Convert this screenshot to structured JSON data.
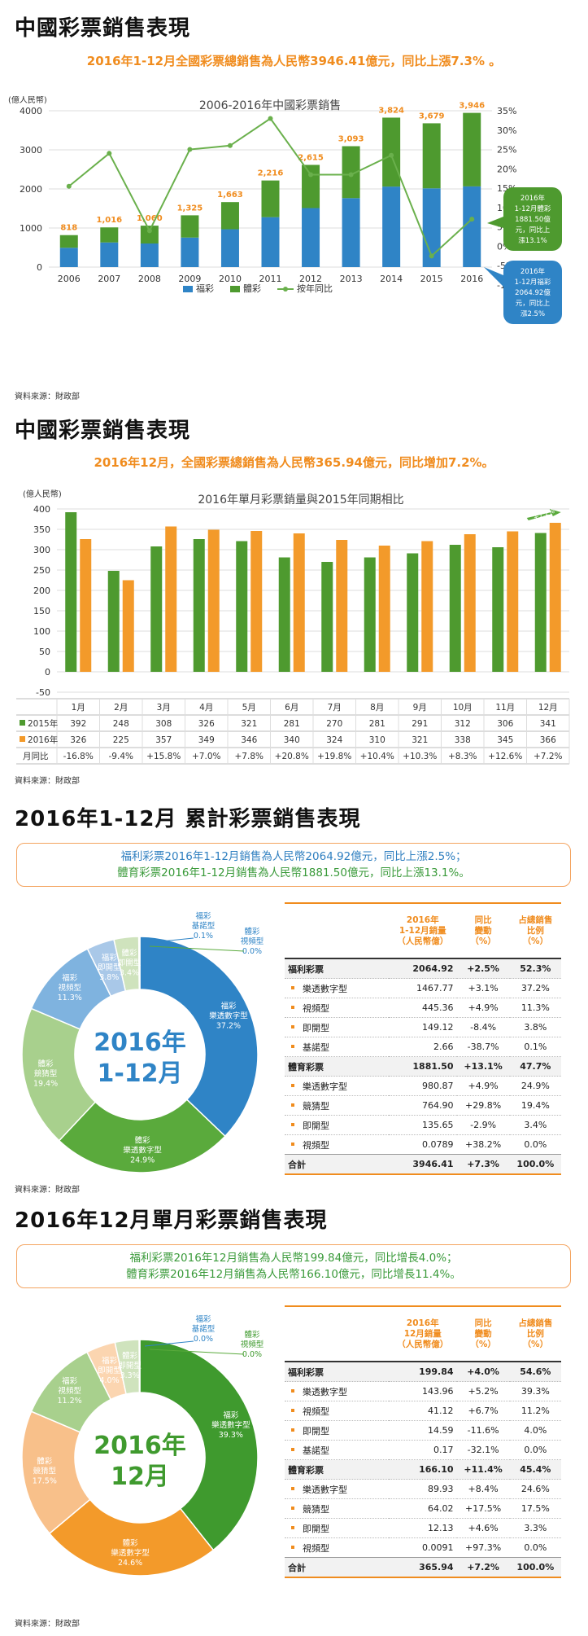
{
  "s1": {
    "title": "中國彩票銷售表現",
    "sub": "2016年1-12月全國彩票總銷售為人民幣3946.41億元，同比上漲7.3% 。",
    "unit": "(億人民幣)",
    "source": "資料來源：財政部"
  },
  "s2": {
    "title": "中國彩票銷售表現",
    "sub": "2016年12月，全國彩票總銷售為人民幣365.94億元，同比增加7.2%。",
    "unit": "(億人民幣)",
    "source": "資料來源：財政部"
  },
  "s3": {
    "title": "2016年1-12月 累計彩票銷售表現",
    "box_line1": "福利彩票2016年1-12月銷售為人民幣2064.92億元，同比上漲2.5%；",
    "box_line2": "體育彩票2016年1-12月銷售為人民幣1881.50億元，同比上漲13.1%。",
    "center_line1": "2016年",
    "center_line2": "1-12月",
    "source": "資料來源：財政部",
    "head": [
      "2016年\n1-12月銷量\n（人民幣億）",
      "同比\n變動\n（%）",
      "占總銷售\n比例\n（%）"
    ]
  },
  "s4": {
    "title": "2016年12月單月彩票銷售表現",
    "box_line1": "福利彩票2016年12月銷售為人民幣199.84億元，同比增長4.0%；",
    "box_line2": "體育彩票2016年12月銷售為人民幣166.10億元，同比增長11.4%。",
    "center_line1": "2016年",
    "center_line2": "12月",
    "source": "資料來源：財政部",
    "head": [
      "2016年\n12月銷量\n（人民幣億）",
      "同比\n變動\n（%）",
      "占總銷售\n比例\n（%）"
    ]
  },
  "chart_data": [
    {
      "type": "bar",
      "title": "2006-2016年中國彩票銷售",
      "stacked": true,
      "categories": [
        "2006",
        "2007",
        "2008",
        "2009",
        "2010",
        "2011",
        "2012",
        "2013",
        "2014",
        "2015",
        "2016"
      ],
      "series": [
        {
          "name": "福彩",
          "color": "#2f84c6",
          "values": [
            495,
            631,
            604,
            756,
            968,
            1278,
            1510,
            1765,
            2060,
            2015,
            2065
          ]
        },
        {
          "name": "體彩",
          "color": "#4e9a2f",
          "values": [
            323,
            385,
            456,
            569,
            695,
            938,
            1105,
            1328,
            1764,
            1664,
            1881
          ]
        },
        {
          "name": "按年同比",
          "type": "line",
          "color": "#6ab04c",
          "axis": "right",
          "values": [
            15.5,
            24,
            4,
            25,
            26,
            33,
            18.5,
            18.5,
            23.5,
            -2.5,
            7
          ]
        }
      ],
      "totals": [
        "818",
        "1,016",
        "1,060",
        "1,325",
        "1,663",
        "2,216",
        "2,615",
        "3,093",
        "3,824",
        "3,679",
        "3,946"
      ],
      "ylim": [
        0,
        4000
      ],
      "y_ticks": [
        "0",
        "1000",
        "2000",
        "3000",
        "4000"
      ],
      "y2lim": [
        -10,
        35
      ],
      "y2_ticks": [
        "-10%",
        "-5%",
        "0%",
        "5%",
        "10%",
        "15%",
        "20%",
        "25%",
        "30%",
        "35%"
      ],
      "legend": [
        "福彩",
        "體彩",
        "按年同比"
      ],
      "callouts": [
        {
          "text": [
            "2016年",
            "1-12月體彩",
            "1881.50億",
            "元，同比上",
            "漲13.1%"
          ],
          "color": "#4e9a2f"
        },
        {
          "text": [
            "2016年",
            "1-12月福彩",
            "2064.92億",
            "元，同比上",
            "漲2.5%"
          ],
          "color": "#2f84c6"
        }
      ]
    },
    {
      "type": "bar",
      "title": "2016年單月彩票銷量與2015年同期相比",
      "categories": [
        "1月",
        "2月",
        "3月",
        "4月",
        "5月",
        "6月",
        "7月",
        "8月",
        "9月",
        "10月",
        "11月",
        "12月"
      ],
      "series": [
        {
          "name": "2015年",
          "color": "#4e9a2f",
          "values": [
            392,
            248,
            308,
            326,
            321,
            281,
            270,
            281,
            291,
            312,
            306,
            341
          ]
        },
        {
          "name": "2016年",
          "color": "#f39a2a",
          "values": [
            326,
            225,
            357,
            349,
            346,
            340,
            324,
            310,
            321,
            338,
            345,
            366
          ]
        }
      ],
      "yoy_label": "月同比",
      "yoy": [
        "-16.8%",
        "-9.4%",
        "+15.8%",
        "+7.0%",
        "+7.8%",
        "+20.8%",
        "+19.8%",
        "+10.4%",
        "+10.3%",
        "+8.3%",
        "+12.6%",
        "+7.2%"
      ],
      "arrow_label": "+7.2%",
      "ylim": [
        -50,
        400
      ],
      "y_ticks": [
        "-50",
        "0",
        "50",
        "100",
        "150",
        "200",
        "250",
        "300",
        "350",
        "400"
      ]
    },
    {
      "type": "pie",
      "name": "2016年1-12月",
      "slices": [
        {
          "label": [
            "福彩",
            "樂透數字型",
            "37.2%"
          ],
          "value": 37.2,
          "color": "#2f84c6"
        },
        {
          "label": [
            "體彩",
            "樂透數字型",
            "24.9%"
          ],
          "value": 24.9,
          "color": "#5aaa3c"
        },
        {
          "label": [
            "體彩",
            "競猜型",
            "19.4%"
          ],
          "value": 19.4,
          "color": "#a8d08d"
        },
        {
          "label": [
            "福彩",
            "視頻型",
            "11.3%"
          ],
          "value": 11.3,
          "color": "#7fb3df"
        },
        {
          "label": [
            "福彩",
            "即開型",
            "3.8%"
          ],
          "value": 3.8,
          "color": "#a9c8e8"
        },
        {
          "label": [
            "體彩",
            "即開型",
            "3.4%"
          ],
          "value": 3.4,
          "color": "#cfe3bd"
        },
        {
          "label": [
            "福彩",
            "基諾型",
            "0.1%"
          ],
          "value": 0.1,
          "color": "#2f84c6"
        },
        {
          "label": [
            "體彩",
            "視頻型",
            "0.0%"
          ],
          "value": 0.05,
          "color": "#5aaa3c"
        }
      ],
      "table": [
        {
          "kind": "grp",
          "name": "福利彩票",
          "v": "2064.92",
          "chg": "+2.5%",
          "pct": "52.3%"
        },
        {
          "kind": "sub",
          "name": "樂透數字型",
          "v": "1467.77",
          "chg": "+3.1%",
          "pct": "37.2%"
        },
        {
          "kind": "sub",
          "name": "視頻型",
          "v": "445.36",
          "chg": "+4.9%",
          "pct": "11.3%"
        },
        {
          "kind": "sub",
          "name": "即開型",
          "v": "149.12",
          "chg": "-8.4%",
          "pct": "3.8%"
        },
        {
          "kind": "sub",
          "name": "基諾型",
          "v": "2.66",
          "chg": "-38.7%",
          "pct": "0.1%"
        },
        {
          "kind": "grp",
          "name": "體育彩票",
          "v": "1881.50",
          "chg": "+13.1%",
          "pct": "47.7%"
        },
        {
          "kind": "sub",
          "name": "樂透數字型",
          "v": "980.87",
          "chg": "+4.9%",
          "pct": "24.9%"
        },
        {
          "kind": "sub",
          "name": "競猜型",
          "v": "764.90",
          "chg": "+29.8%",
          "pct": "19.4%"
        },
        {
          "kind": "sub",
          "name": "即開型",
          "v": "135.65",
          "chg": "-2.9%",
          "pct": "3.4%"
        },
        {
          "kind": "sub",
          "name": "視頻型",
          "v": "0.0789",
          "chg": "+38.2%",
          "pct": "0.0%"
        },
        {
          "kind": "tot",
          "name": "合計",
          "v": "3946.41",
          "chg": "+7.3%",
          "pct": "100.0%"
        }
      ]
    },
    {
      "type": "pie",
      "name": "2016年12月",
      "slices": [
        {
          "label": [
            "福彩",
            "樂透數字型",
            "39.3%"
          ],
          "value": 39.3,
          "color": "#3f9a2e"
        },
        {
          "label": [
            "體彩",
            "樂透數字型",
            "24.6%"
          ],
          "value": 24.6,
          "color": "#f39a2a"
        },
        {
          "label": [
            "體彩",
            "競猜型",
            "17.5%"
          ],
          "value": 17.5,
          "color": "#f8c08a"
        },
        {
          "label": [
            "福彩",
            "視頻型",
            "11.2%"
          ],
          "value": 11.2,
          "color": "#a8d08d"
        },
        {
          "label": [
            "福彩",
            "即開型",
            "4.0%"
          ],
          "value": 4.0,
          "color": "#fbd5b0"
        },
        {
          "label": [
            "體彩",
            "即開型",
            "3.3%"
          ],
          "value": 3.3,
          "color": "#cfe3bd"
        },
        {
          "label": [
            "福彩",
            "基諾型",
            "0.0%"
          ],
          "value": 0.05,
          "color": "#3f9a2e"
        },
        {
          "label": [
            "體彩",
            "視頻型",
            "0.0%"
          ],
          "value": 0.05,
          "color": "#f39a2a"
        }
      ],
      "table": [
        {
          "kind": "grp",
          "name": "福利彩票",
          "v": "199.84",
          "chg": "+4.0%",
          "pct": "54.6%"
        },
        {
          "kind": "sub",
          "name": "樂透數字型",
          "v": "143.96",
          "chg": "+5.2%",
          "pct": "39.3%"
        },
        {
          "kind": "sub",
          "name": "視頻型",
          "v": "41.12",
          "chg": "+6.7%",
          "pct": "11.2%"
        },
        {
          "kind": "sub",
          "name": "即開型",
          "v": "14.59",
          "chg": "-11.6%",
          "pct": "4.0%"
        },
        {
          "kind": "sub",
          "name": "基諾型",
          "v": "0.17",
          "chg": "-32.1%",
          "pct": "0.0%"
        },
        {
          "kind": "grp",
          "name": "體育彩票",
          "v": "166.10",
          "chg": "+11.4%",
          "pct": "45.4%"
        },
        {
          "kind": "sub",
          "name": "樂透數字型",
          "v": "89.93",
          "chg": "+8.4%",
          "pct": "24.6%"
        },
        {
          "kind": "sub",
          "name": "競猜型",
          "v": "64.02",
          "chg": "+17.5%",
          "pct": "17.5%"
        },
        {
          "kind": "sub",
          "name": "即開型",
          "v": "12.13",
          "chg": "+4.6%",
          "pct": "3.3%"
        },
        {
          "kind": "sub",
          "name": "視頻型",
          "v": "0.0091",
          "chg": "+97.3%",
          "pct": "0.0%"
        },
        {
          "kind": "tot",
          "name": "合計",
          "v": "365.94",
          "chg": "+7.2%",
          "pct": "100.0%"
        }
      ]
    }
  ]
}
